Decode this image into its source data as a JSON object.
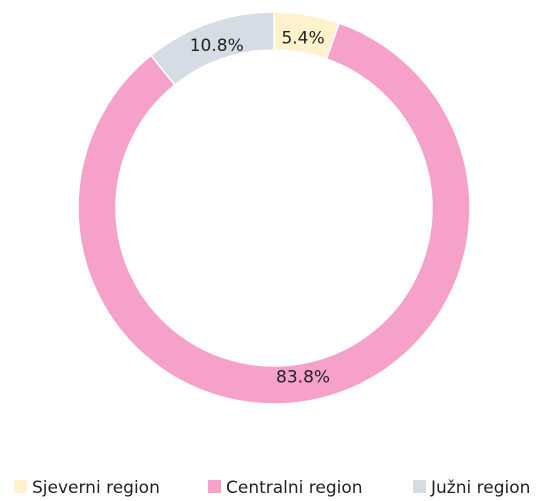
{
  "chart_data": {
    "type": "donut",
    "categories": [
      "Sjeverni region",
      "Centralni region",
      "Južni region"
    ],
    "values": [
      5.4,
      83.8,
      10.8
    ],
    "value_labels": [
      "5.4%",
      "83.8%",
      "10.8%"
    ],
    "colors": [
      "#fff2cc",
      "#f5a1ca",
      "#d6dce4"
    ],
    "legend": "bottom"
  }
}
